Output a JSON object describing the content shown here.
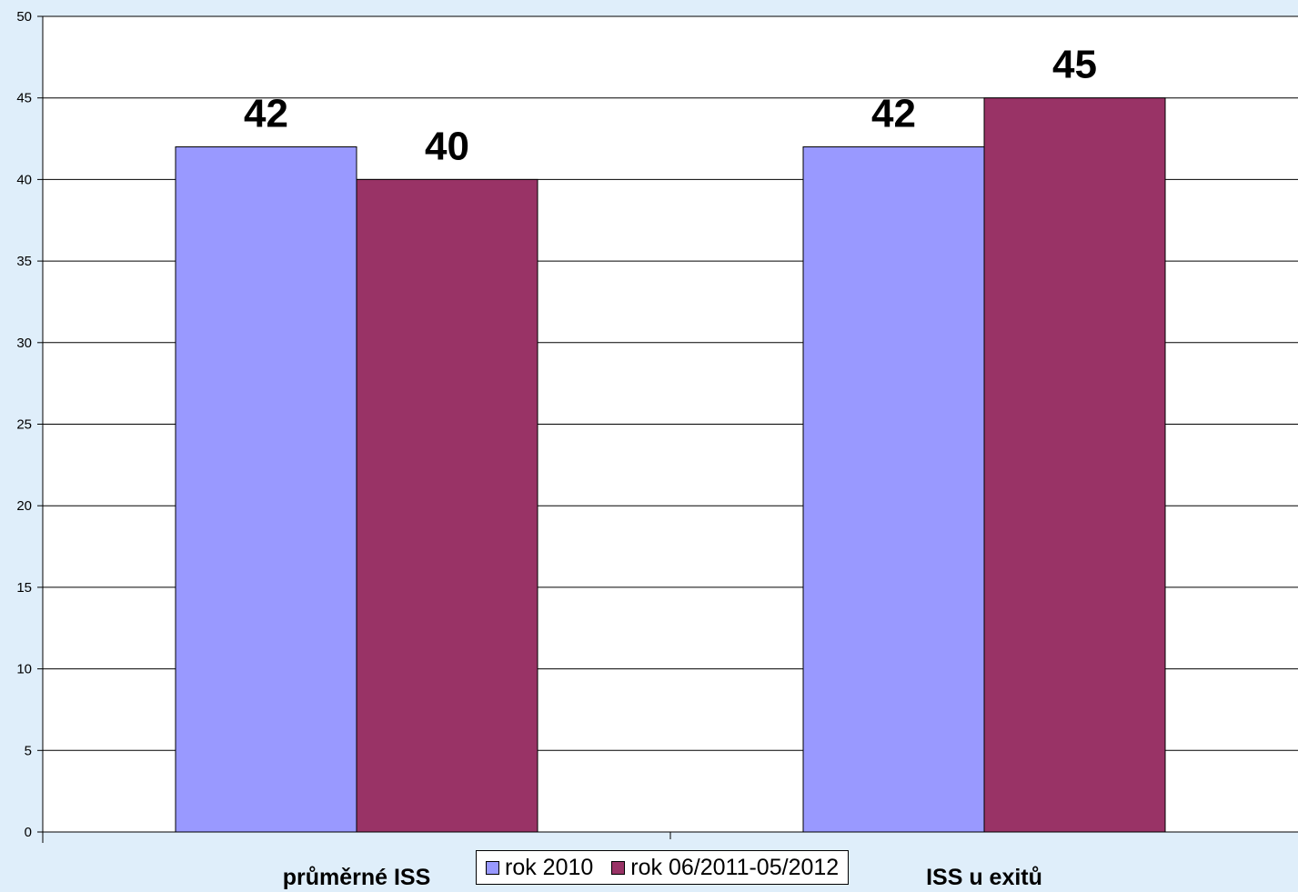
{
  "chart_data": {
    "type": "bar",
    "categories": [
      "průměrné ISS",
      "ISS u exitů"
    ],
    "series": [
      {
        "name": "rok 2010",
        "values": [
          42,
          42
        ],
        "color": "#9999ff"
      },
      {
        "name": "rok 06/2011-05/2012",
        "values": [
          40,
          45
        ],
        "color": "#993366"
      }
    ],
    "data_labels": [
      [
        "42",
        "42"
      ],
      [
        "40",
        "45"
      ]
    ],
    "ylim": [
      0,
      50
    ],
    "yticks": [
      0,
      5,
      10,
      15,
      20,
      25,
      30,
      35,
      40,
      45,
      50
    ],
    "title": "",
    "xlabel": "",
    "ylabel": "",
    "grid": true,
    "plot_background": "#ffffff",
    "page_background": "#dfeefa",
    "legend_position": "bottom-center"
  }
}
